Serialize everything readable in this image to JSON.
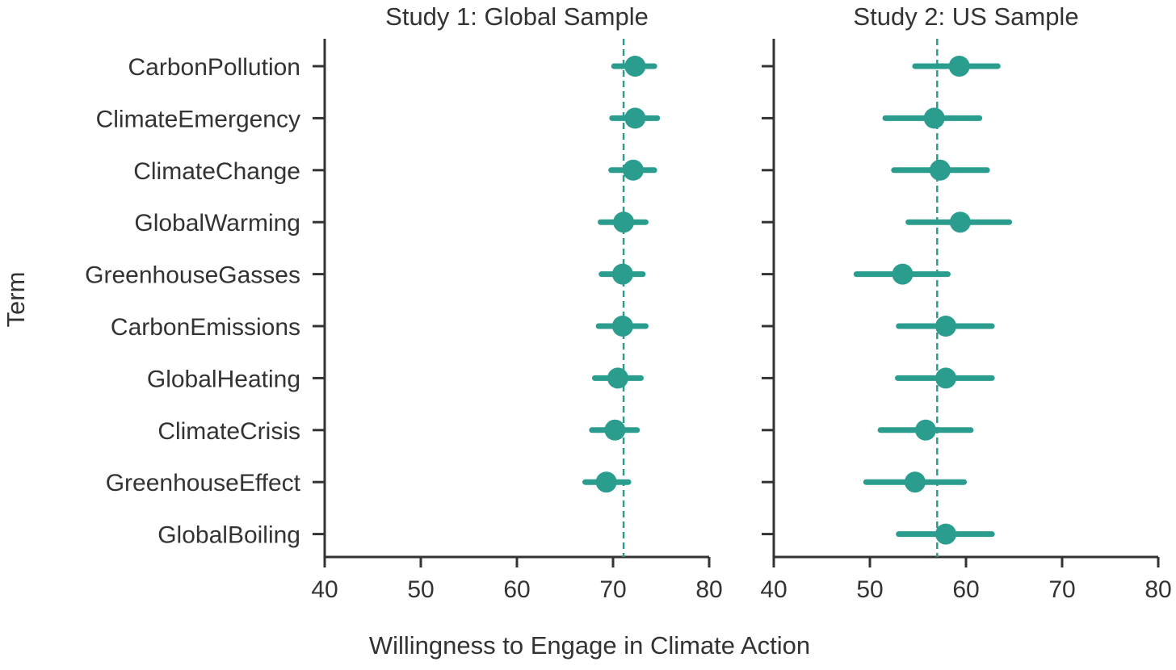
{
  "chart_data": {
    "type": "scatter",
    "description_kind": "point-and-interval",
    "ylabel": "Term",
    "xlabel": "Willingness to Engage in Climate Action",
    "xlim": [
      40,
      80
    ],
    "xticks": [
      40,
      50,
      60,
      70,
      80
    ],
    "categories": [
      "CarbonPollution",
      "ClimateEmergency",
      "ClimateChange",
      "GlobalWarming",
      "GreenhouseGasses",
      "CarbonEmissions",
      "GlobalHeating",
      "ClimateCrisis",
      "GreenhouseEffect",
      "GlobalBoiling"
    ],
    "color": "#2a9d8f",
    "grid": false,
    "panels": [
      {
        "title": "Study 1: Global Sample",
        "reference_line": 71.1,
        "points": [
          {
            "term": "CarbonPollution",
            "mean": 72.3,
            "low": 70.1,
            "high": 74.3
          },
          {
            "term": "ClimateEmergency",
            "mean": 72.3,
            "low": 69.9,
            "high": 74.6
          },
          {
            "term": "ClimateChange",
            "mean": 72.1,
            "low": 69.8,
            "high": 74.3
          },
          {
            "term": "GlobalWarming",
            "mean": 71.1,
            "low": 68.7,
            "high": 73.4
          },
          {
            "term": "GreenhouseGasses",
            "mean": 71.0,
            "low": 68.8,
            "high": 73.1
          },
          {
            "term": "CarbonEmissions",
            "mean": 71.0,
            "low": 68.5,
            "high": 73.4
          },
          {
            "term": "GlobalHeating",
            "mean": 70.5,
            "low": 68.1,
            "high": 72.9
          },
          {
            "term": "ClimateCrisis",
            "mean": 70.2,
            "low": 67.8,
            "high": 72.5
          },
          {
            "term": "GreenhouseEffect",
            "mean": 69.3,
            "low": 67.1,
            "high": 71.6
          },
          {
            "term": "GlobalBoiling",
            "mean": null,
            "low": null,
            "high": null
          }
        ]
      },
      {
        "title": "Study 2: US Sample",
        "reference_line": 57.0,
        "points": [
          {
            "term": "CarbonPollution",
            "mean": 59.3,
            "low": 54.7,
            "high": 63.3
          },
          {
            "term": "ClimateEmergency",
            "mean": 56.7,
            "low": 51.6,
            "high": 61.4
          },
          {
            "term": "ClimateChange",
            "mean": 57.3,
            "low": 52.5,
            "high": 62.2
          },
          {
            "term": "GlobalWarming",
            "mean": 59.4,
            "low": 54.0,
            "high": 64.5
          },
          {
            "term": "GreenhouseGasses",
            "mean": 53.4,
            "low": 48.6,
            "high": 58.1
          },
          {
            "term": "CarbonEmissions",
            "mean": 57.9,
            "low": 53.0,
            "high": 62.7
          },
          {
            "term": "GlobalHeating",
            "mean": 57.9,
            "low": 52.9,
            "high": 62.7
          },
          {
            "term": "ClimateCrisis",
            "mean": 55.8,
            "low": 51.1,
            "high": 60.5
          },
          {
            "term": "GreenhouseEffect",
            "mean": 54.7,
            "low": 49.6,
            "high": 59.8
          },
          {
            "term": "GlobalBoiling",
            "mean": 57.9,
            "low": 53.0,
            "high": 62.7
          }
        ]
      }
    ]
  }
}
